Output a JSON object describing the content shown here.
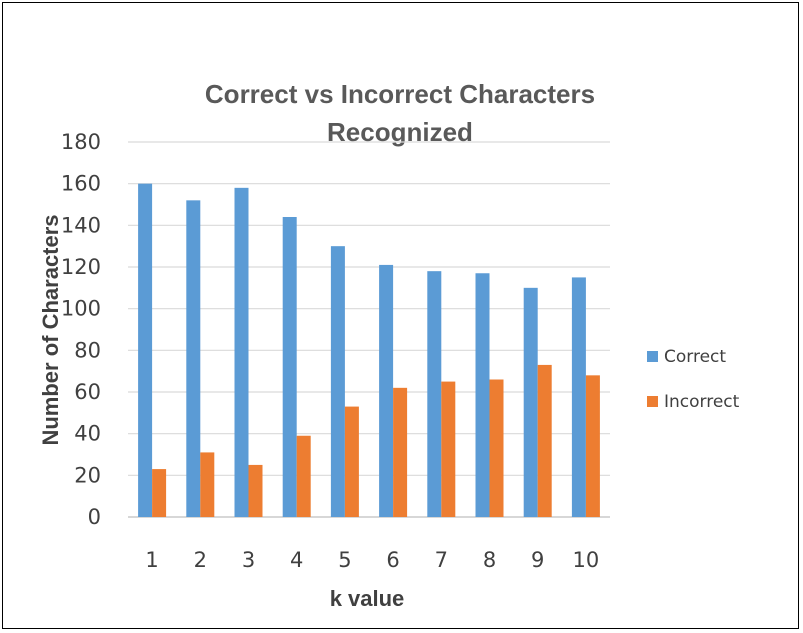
{
  "chart_data": {
    "type": "bar",
    "title_lines": [
      "Correct vs Incorrect Characters",
      "Recognized"
    ],
    "xlabel": "k value",
    "ylabel": "Number of Characters",
    "categories": [
      "1",
      "2",
      "3",
      "4",
      "5",
      "6",
      "7",
      "8",
      "9",
      "10"
    ],
    "yticks": [
      "0",
      "20",
      "40",
      "60",
      "80",
      "100",
      "120",
      "140",
      "160",
      "180"
    ],
    "ylim": [
      0,
      180
    ],
    "grid": true,
    "legend_position": "right",
    "series": [
      {
        "name": "Correct",
        "color": "#5B9BD5",
        "values": [
          160,
          152,
          158,
          144,
          130,
          121,
          118,
          117,
          110,
          115
        ]
      },
      {
        "name": "Incorrect",
        "color": "#ED7D31",
        "values": [
          23,
          31,
          25,
          39,
          53,
          62,
          65,
          66,
          73,
          68
        ]
      }
    ]
  }
}
